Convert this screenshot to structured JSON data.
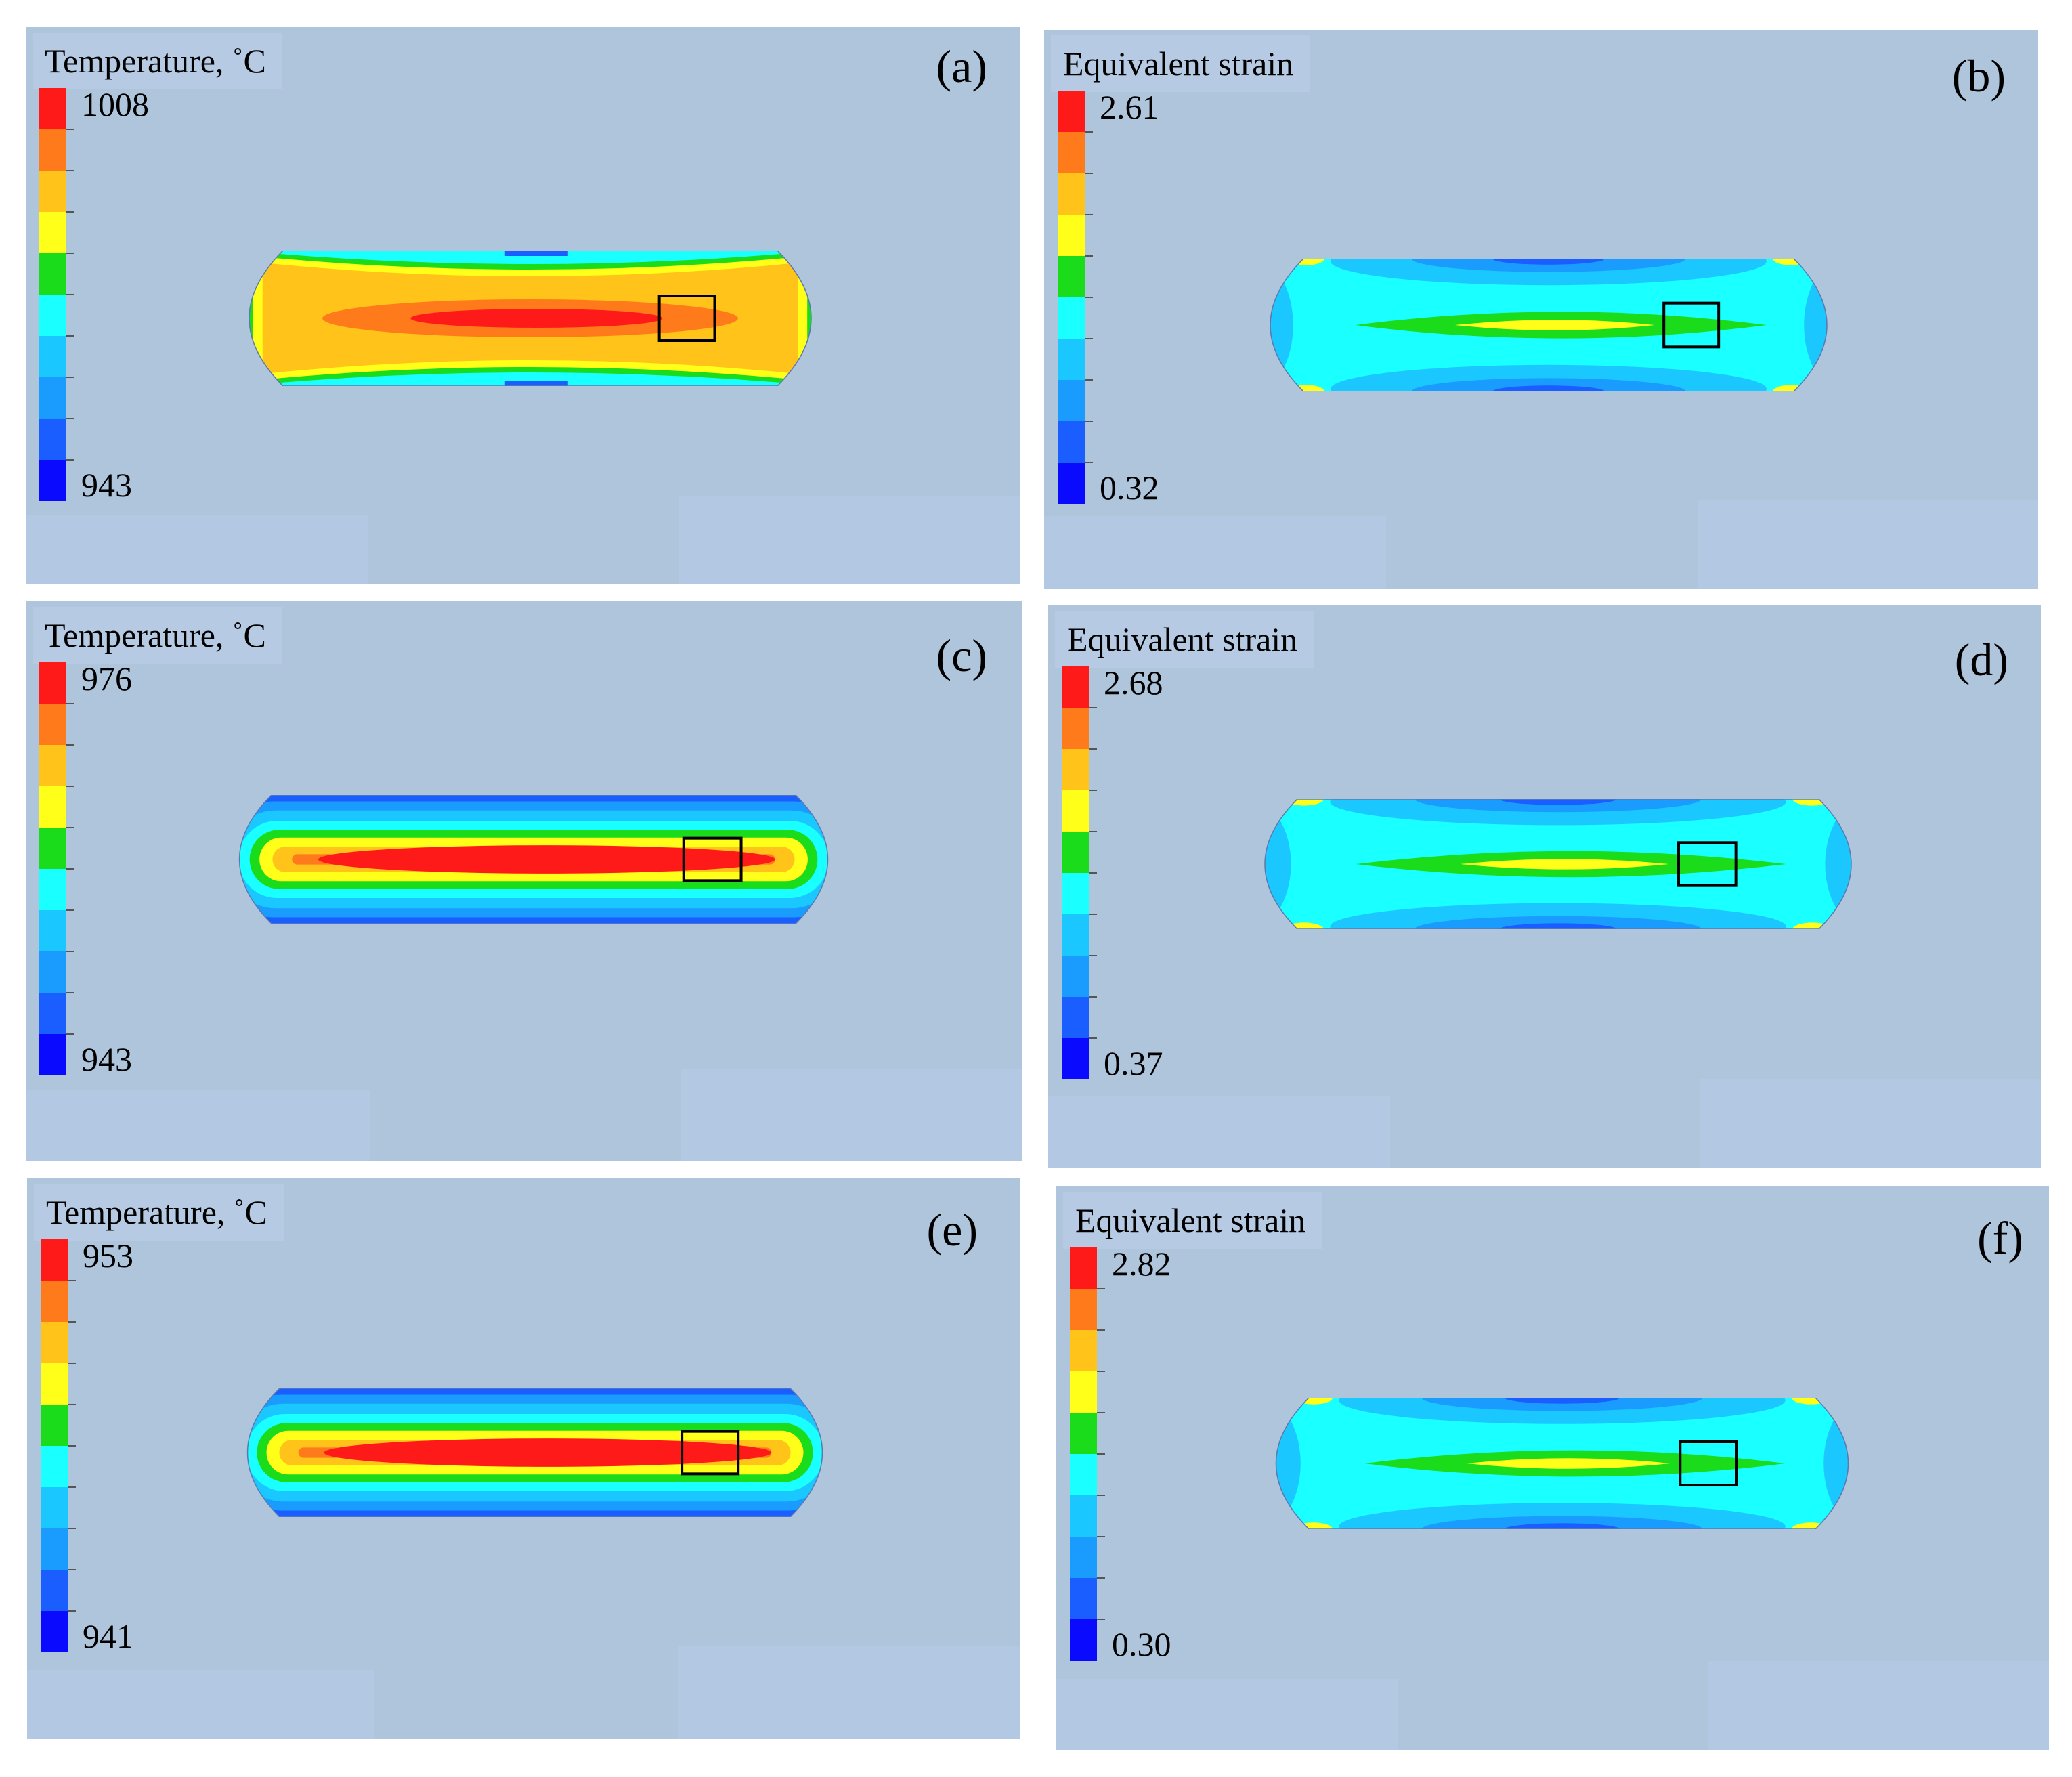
{
  "colormap": [
    "#ff1a1a",
    "#ff7a1a",
    "#ffc31a",
    "#ffff1a",
    "#1adc1a",
    "#1affff",
    "#1ac8ff",
    "#1a9cff",
    "#1a5eff",
    "#0a0aff"
  ],
  "panels": [
    {
      "id": "a",
      "label": "(a)",
      "title": "Temperature, ˚C",
      "max": "1008",
      "min": "943",
      "pattern": "temp-hourglass"
    },
    {
      "id": "b",
      "label": "(b)",
      "title": "Equivalent strain",
      "max": "2.61",
      "min": "0.32",
      "pattern": "strain"
    },
    {
      "id": "c",
      "label": "(c)",
      "title": "Temperature, ˚C",
      "max": "976",
      "min": "943",
      "pattern": "temp-oval"
    },
    {
      "id": "d",
      "label": "(d)",
      "title": "Equivalent strain",
      "max": "2.68",
      "min": "0.37",
      "pattern": "strain"
    },
    {
      "id": "e",
      "label": "(e)",
      "title": "Temperature, ˚C",
      "max": "953",
      "min": "941",
      "pattern": "temp-oval"
    },
    {
      "id": "f",
      "label": "(f)",
      "title": "Equivalent strain",
      "max": "2.82",
      "min": "0.30",
      "pattern": "strain"
    }
  ]
}
